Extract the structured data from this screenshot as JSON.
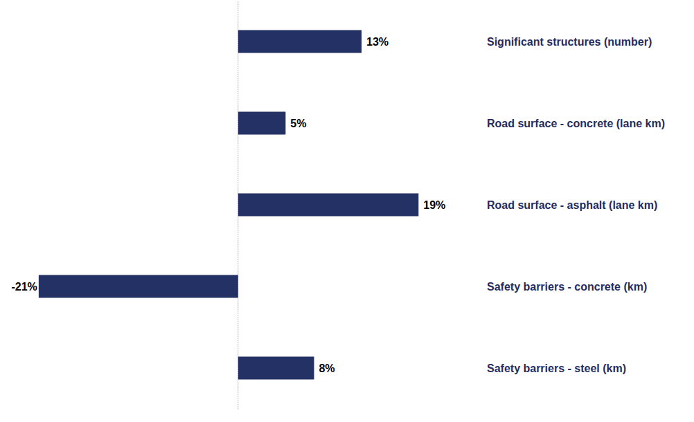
{
  "chart_data": {
    "type": "bar",
    "orientation": "horizontal",
    "categories": [
      "Significant structures (number)",
      "Road surface - concrete (lane km)",
      "Road surface - asphalt (lane km)",
      "Safety barriers - concrete (km)",
      "Safety barriers - steel (km)"
    ],
    "values": [
      13,
      5,
      19,
      -21,
      8
    ],
    "value_labels": [
      "13%",
      "5%",
      "19%",
      "-21%",
      "8%"
    ],
    "color": "#243165",
    "xlim": [
      -25,
      20
    ],
    "grid": false,
    "data_labels": true,
    "tick_labels": false
  }
}
